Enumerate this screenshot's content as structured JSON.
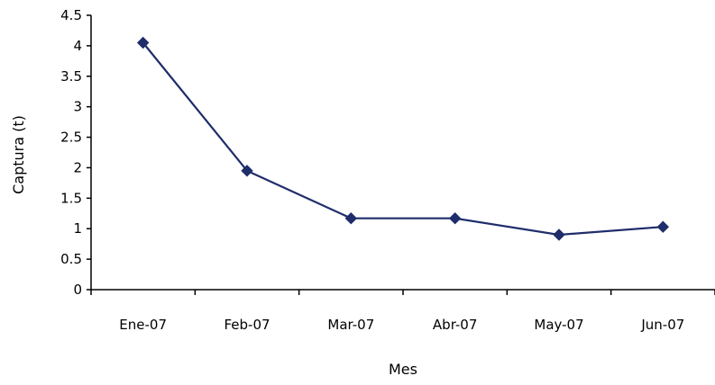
{
  "chart_data": {
    "type": "line",
    "title": "",
    "xlabel": "Mes",
    "ylabel": "Captura (t)",
    "categories": [
      "Ene-07",
      "Feb-07",
      "Mar-07",
      "Abr-07",
      "May-07",
      "Jun-07"
    ],
    "series": [
      {
        "values": [
          4.05,
          1.95,
          1.17,
          1.17,
          0.9,
          1.03
        ]
      }
    ],
    "ylim": [
      0,
      4.5
    ],
    "yticks": [
      "0",
      "0.5",
      "1",
      "1.5",
      "2",
      "2.5",
      "3",
      "3.5",
      "4",
      "4.5"
    ],
    "grid": false,
    "legend": "none",
    "marker": "diamond",
    "line_color": "#1F2D6B"
  }
}
